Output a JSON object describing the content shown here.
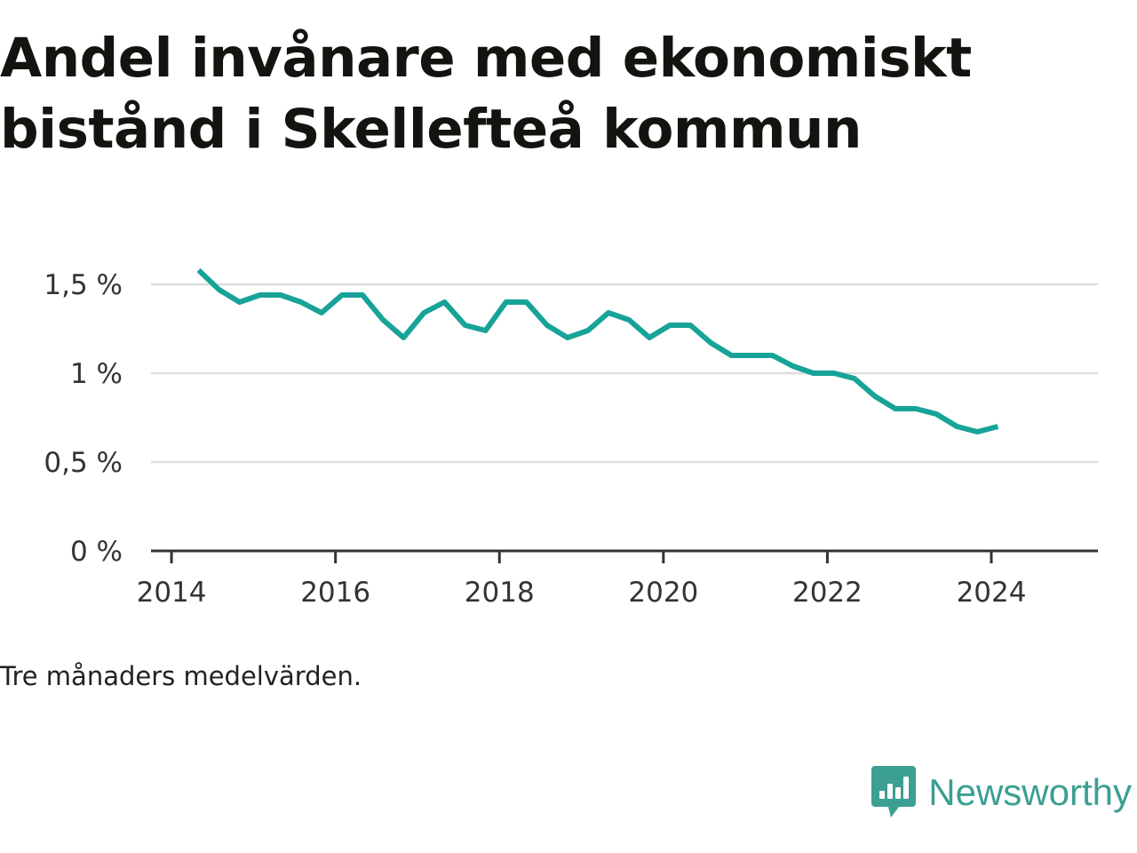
{
  "title": "Andel invånare med ekonomiskt bistånd i Skellefteå kommun",
  "note": "Tre månaders medelvärden.",
  "brand": {
    "name": "Newsworthy",
    "icon": "bar-chart-speech-bubble-icon"
  },
  "colors": {
    "line": "#17a398",
    "grid": "#dddddd",
    "axis": "#333333",
    "brand": "#3b9f92"
  },
  "chart_data": {
    "type": "line",
    "title": "Andel invånare med ekonomiskt bistånd i Skellefteå kommun",
    "xlabel": "",
    "ylabel": "",
    "xlim": [
      2013.75,
      2025.3
    ],
    "ylim": [
      0,
      1.5
    ],
    "grid": true,
    "legend": "none",
    "x_ticks": [
      {
        "value": 2014,
        "label": "2014"
      },
      {
        "value": 2016,
        "label": "2016"
      },
      {
        "value": 2018,
        "label": "2018"
      },
      {
        "value": 2020,
        "label": "2020"
      },
      {
        "value": 2022,
        "label": "2022"
      },
      {
        "value": 2024,
        "label": "2024"
      }
    ],
    "y_ticks": [
      {
        "value": 0,
        "label": "0 %"
      },
      {
        "value": 0.5,
        "label": "0,5 %"
      },
      {
        "value": 1,
        "label": "1 %"
      },
      {
        "value": 1.5,
        "label": "1,5 %"
      }
    ],
    "series": [
      {
        "x": [
          2014.33,
          2014.58,
          2014.83,
          2015.08,
          2015.33,
          2015.58,
          2015.83,
          2016.08,
          2016.33,
          2016.58,
          2016.83,
          2017.08,
          2017.33,
          2017.58,
          2017.83,
          2018.08,
          2018.33,
          2018.58,
          2018.83,
          2019.08,
          2019.33,
          2019.58,
          2019.83,
          2020.08,
          2020.33,
          2020.58,
          2020.83,
          2021.08,
          2021.33,
          2021.58,
          2021.83,
          2022.08,
          2022.33,
          2022.58,
          2022.83,
          2023.08,
          2023.33,
          2023.58,
          2023.83,
          2024.08
        ],
        "values": [
          1.58,
          1.47,
          1.4,
          1.44,
          1.44,
          1.4,
          1.34,
          1.44,
          1.44,
          1.3,
          1.2,
          1.34,
          1.4,
          1.27,
          1.24,
          1.4,
          1.4,
          1.27,
          1.2,
          1.24,
          1.34,
          1.3,
          1.2,
          1.27,
          1.27,
          1.17,
          1.1,
          1.1,
          1.1,
          1.04,
          1.0,
          1.0,
          0.97,
          0.87,
          0.8,
          0.8,
          0.77,
          0.7,
          0.67,
          0.7
        ]
      }
    ]
  }
}
